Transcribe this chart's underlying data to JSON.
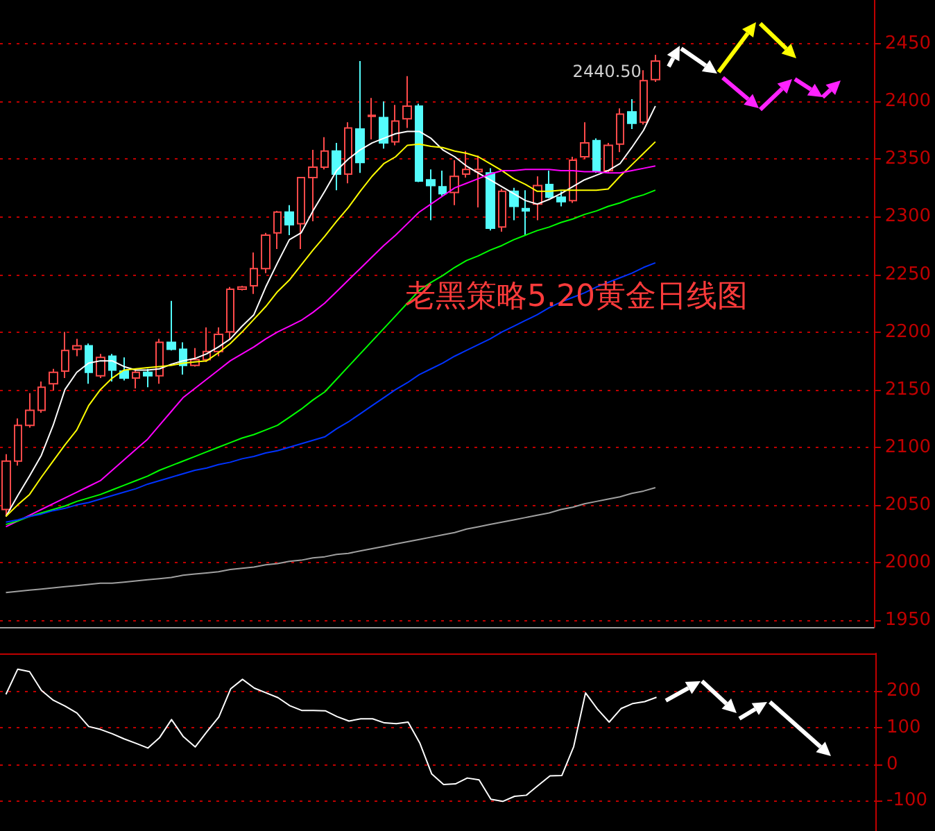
{
  "chart_data": [
    {
      "type": "candlestick",
      "title": "老黑策略5.20黄金日线图",
      "categories": [
        null,
        null,
        null,
        null,
        null,
        null,
        null,
        null,
        null,
        null,
        null,
        null,
        null,
        null,
        null,
        null,
        null,
        null,
        null,
        null,
        null,
        null,
        null,
        null,
        null,
        null,
        null,
        null,
        null,
        null,
        null,
        null,
        null,
        null,
        null,
        null,
        null,
        null,
        null,
        null,
        null,
        null,
        null,
        null,
        null,
        null,
        null,
        null,
        null,
        null,
        null,
        null,
        null,
        null,
        null,
        null
      ],
      "ohlc": [
        [
          2046,
          2094,
          2040,
          2088
        ],
        [
          2088,
          2125,
          2084,
          2119
        ],
        [
          2119,
          2147,
          2117,
          2132
        ],
        [
          2132,
          2157,
          2130,
          2152
        ],
        [
          2155,
          2168,
          2149,
          2165
        ],
        [
          2166,
          2200,
          2160,
          2184
        ],
        [
          2185,
          2194,
          2179,
          2188
        ],
        [
          2188,
          2190,
          2155,
          2165
        ],
        [
          2162,
          2181,
          2160,
          2178
        ],
        [
          2179,
          2181,
          2157,
          2167
        ],
        [
          2166,
          2178,
          2158,
          2160
        ],
        [
          2160,
          2168,
          2151,
          2165
        ],
        [
          2165,
          2168,
          2152,
          2162
        ],
        [
          2162,
          2194,
          2155,
          2191
        ],
        [
          2191,
          2227,
          2184,
          2185
        ],
        [
          2185,
          2191,
          2163,
          2171
        ],
        [
          2171,
          2186,
          2170,
          2176
        ],
        [
          2176,
          2204,
          2174,
          2183
        ],
        [
          2183,
          2204,
          2179,
          2198
        ],
        [
          2200,
          2239,
          2194,
          2237
        ],
        [
          2237,
          2240,
          2236,
          2239
        ],
        [
          2240,
          2269,
          2233,
          2255
        ],
        [
          2255,
          2286,
          2251,
          2284
        ],
        [
          2286,
          2305,
          2272,
          2304
        ],
        [
          2304,
          2310,
          2284,
          2293
        ],
        [
          2294,
          2334,
          2272,
          2334
        ],
        [
          2334,
          2358,
          2296,
          2343
        ],
        [
          2343,
          2369,
          2341,
          2357
        ],
        [
          2357,
          2364,
          2323,
          2337
        ],
        [
          2337,
          2382,
          2329,
          2377
        ],
        [
          2376,
          2435,
          2338,
          2347
        ],
        [
          2387,
          2403,
          2367,
          2388
        ],
        [
          2386,
          2400,
          2359,
          2364
        ],
        [
          2365,
          2397,
          2362,
          2383
        ],
        [
          2385,
          2422,
          2377,
          2396
        ],
        [
          2396,
          2398,
          2330,
          2331
        ],
        [
          2332,
          2341,
          2297,
          2327
        ],
        [
          2326,
          2340,
          2318,
          2320
        ],
        [
          2321,
          2349,
          2310,
          2335
        ],
        [
          2337,
          2357,
          2334,
          2341
        ],
        [
          2339,
          2353,
          2308,
          2341
        ],
        [
          2338,
          2342,
          2288,
          2290
        ],
        [
          2291,
          2324,
          2287,
          2322
        ],
        [
          2322,
          2325,
          2297,
          2309
        ],
        [
          2307,
          2323,
          2284,
          2305
        ],
        [
          2311,
          2335,
          2297,
          2327
        ],
        [
          2328,
          2340,
          2316,
          2317
        ],
        [
          2317,
          2322,
          2309,
          2313
        ],
        [
          2314,
          2352,
          2312,
          2349
        ],
        [
          2352,
          2382,
          2350,
          2364
        ],
        [
          2366,
          2368,
          2338,
          2340
        ],
        [
          2340,
          2364,
          2338,
          2362
        ],
        [
          2363,
          2394,
          2356,
          2389
        ],
        [
          2391,
          2402,
          2376,
          2381
        ],
        [
          2382,
          2427,
          2380,
          2418
        ],
        [
          2419,
          2440.5,
          2417,
          2435
        ]
      ],
      "colors": [
        "#ff4a4a",
        "#ff4a4a",
        "#ff4a4a",
        "#ff4a4a",
        "#ff4a4a",
        "#ff4a4a",
        "#ff4a4a",
        "#54fcfc",
        "#ff4a4a",
        "#54fcfc",
        "#54fcfc",
        "#ff4a4a",
        "#54fcfc",
        "#ff4a4a",
        "#54fcfc",
        "#54fcfc",
        "#ff4a4a",
        "#ff4a4a",
        "#ff4a4a",
        "#ff4a4a",
        "#ff4a4a",
        "#ff4a4a",
        "#ff4a4a",
        "#ff4a4a",
        "#54fcfc",
        "#ff4a4a",
        "#ff4a4a",
        "#ff4a4a",
        "#54fcfc",
        "#ff4a4a",
        "#54fcfc",
        "#ff4a4a",
        "#54fcfc",
        "#ff4a4a",
        "#ff4a4a",
        "#54fcfc",
        "#54fcfc",
        "#54fcfc",
        "#ff4a4a",
        "#ff4a4a",
        "#ff4a4a",
        "#54fcfc",
        "#ff4a4a",
        "#54fcfc",
        "#54fcfc",
        "#ff4a4a",
        "#54fcfc",
        "#54fcfc",
        "#ff4a4a",
        "#ff4a4a",
        "#54fcfc",
        "#ff4a4a",
        "#ff4a4a",
        "#54fcfc",
        "#ff4a4a",
        "#ff4a4a"
      ],
      "series": [
        {
          "type": "line",
          "color": "#ffffff",
          "values": [
            2040,
            2058,
            2075,
            2093,
            2119,
            2150,
            2165,
            2173,
            2175,
            2175,
            2170,
            2167,
            2167,
            2168,
            2172,
            2175,
            2177,
            2181,
            2187,
            2194,
            2205,
            2215,
            2239,
            2260,
            2280,
            2286,
            2305,
            2322,
            2340,
            2350,
            2358,
            2364,
            2368,
            2372,
            2374,
            2374,
            2368,
            2358,
            2352,
            2344,
            2338,
            2332,
            2326,
            2320,
            2314,
            2311,
            2315,
            2320,
            2326,
            2332,
            2336,
            2340,
            2346,
            2360,
            2375,
            2396
          ]
        },
        {
          "type": "line",
          "color": "#ffff00",
          "values": [
            2040,
            2050,
            2059,
            2074,
            2088,
            2102,
            2115,
            2136,
            2150,
            2160,
            2167,
            2168,
            2169,
            2170,
            2171,
            2173,
            2174,
            2175,
            2182,
            2190,
            2200,
            2211,
            2222,
            2235,
            2245,
            2258,
            2271,
            2283,
            2296,
            2308,
            2322,
            2335,
            2346,
            2352,
            2362,
            2363,
            2361,
            2360,
            2357,
            2355,
            2352,
            2346,
            2340,
            2333,
            2328,
            2322,
            2322,
            2323,
            2323,
            2323,
            2323,
            2324,
            2335,
            2345,
            2355,
            2365
          ]
        },
        {
          "type": "line",
          "color": "#ff00ff",
          "values": [
            2031,
            2036,
            2041,
            2046,
            2051,
            2056,
            2061,
            2066,
            2071,
            2080,
            2089,
            2098,
            2107,
            2119,
            2131,
            2143,
            2151,
            2159,
            2167,
            2175,
            2181,
            2187,
            2194,
            2200,
            2205,
            2210,
            2217,
            2225,
            2235,
            2245,
            2255,
            2265,
            2275,
            2284,
            2294,
            2304,
            2311,
            2318,
            2325,
            2329,
            2333,
            2337,
            2340,
            2340,
            2341,
            2341,
            2341,
            2340,
            2340,
            2339,
            2339,
            2338,
            2338,
            2340,
            2342,
            2344
          ]
        },
        {
          "type": "line",
          "color": "#00ff00",
          "values": [
            2033,
            2036,
            2040,
            2043,
            2046,
            2049,
            2053,
            2056,
            2059,
            2063,
            2067,
            2071,
            2075,
            2080,
            2084,
            2088,
            2092,
            2096,
            2100,
            2104,
            2108,
            2111,
            2115,
            2119,
            2126,
            2133,
            2141,
            2148,
            2159,
            2170,
            2181,
            2192,
            2203,
            2214,
            2225,
            2236,
            2243,
            2249,
            2256,
            2262,
            2266,
            2271,
            2275,
            2280,
            2284,
            2288,
            2291,
            2295,
            2298,
            2302,
            2305,
            2309,
            2312,
            2316,
            2319,
            2323
          ]
        },
        {
          "type": "line",
          "color": "#0033ff",
          "values": [
            2035,
            2037,
            2040,
            2042,
            2045,
            2047,
            2050,
            2052,
            2055,
            2058,
            2061,
            2064,
            2068,
            2071,
            2074,
            2077,
            2080,
            2082,
            2085,
            2087,
            2090,
            2092,
            2095,
            2097,
            2100,
            2103,
            2106,
            2109,
            2116,
            2122,
            2129,
            2136,
            2143,
            2150,
            2156,
            2163,
            2168,
            2173,
            2179,
            2184,
            2189,
            2194,
            2200,
            2205,
            2210,
            2215,
            2221,
            2226,
            2230,
            2234,
            2239,
            2243,
            2247,
            2251,
            2256,
            2260
          ]
        },
        {
          "type": "line",
          "color": "#a0a0a0",
          "values": [
            1974,
            1975,
            1976,
            1977,
            1978,
            1979,
            1980,
            1981,
            1982,
            1982,
            1983,
            1984,
            1985,
            1986,
            1987,
            1989,
            1990,
            1991,
            1992,
            1994,
            1995,
            1996,
            1998,
            1999,
            2001,
            2002,
            2004,
            2005,
            2007,
            2008,
            2010,
            2012,
            2014,
            2016,
            2018,
            2020,
            2022,
            2024,
            2026,
            2029,
            2031,
            2033,
            2035,
            2037,
            2039,
            2041,
            2043,
            2046,
            2048,
            2051,
            2053,
            2055,
            2057,
            2060,
            2062,
            2065
          ]
        }
      ],
      "ylim": [
        1944,
        2488
      ],
      "yticks": [
        1950,
        2000,
        2050,
        2100,
        2150,
        2200,
        2250,
        2300,
        2350,
        2400,
        2450
      ],
      "grid": "y",
      "tick_labels": "y",
      "annotations": [
        "2440.50"
      ]
    },
    {
      "type": "line",
      "categories": [
        null,
        null,
        null,
        null,
        null,
        null,
        null,
        null,
        null,
        null,
        null,
        null,
        null,
        null,
        null,
        null,
        null,
        null,
        null,
        null,
        null,
        null,
        null,
        null,
        null,
        null,
        null,
        null,
        null,
        null,
        null,
        null,
        null,
        null,
        null,
        null,
        null,
        null,
        null,
        null,
        null,
        null,
        null,
        null,
        null,
        null,
        null,
        null,
        null,
        null,
        null,
        null,
        null,
        null,
        null,
        null
      ],
      "series": [
        {
          "color": "#ffffff",
          "values": [
            191,
            260,
            253,
            202,
            175,
            159,
            140,
            103,
            95,
            83,
            69,
            57,
            44,
            73,
            122,
            75,
            47,
            89,
            129,
            206,
            232,
            208,
            195,
            182,
            160,
            147,
            147,
            146,
            130,
            118,
            124,
            124,
            113,
            111,
            115,
            57,
            -27,
            -56,
            -54,
            -38,
            -43,
            -96,
            -102,
            -88,
            -85,
            -58,
            -32,
            -31,
            48,
            195,
            151,
            115,
            152,
            166,
            171,
            183
          ]
        }
      ],
      "ylim": [
        -183,
        303
      ],
      "yticks": [
        -100,
        0,
        100,
        200
      ],
      "grid": "y",
      "tick_labels": "y"
    }
  ]
}
